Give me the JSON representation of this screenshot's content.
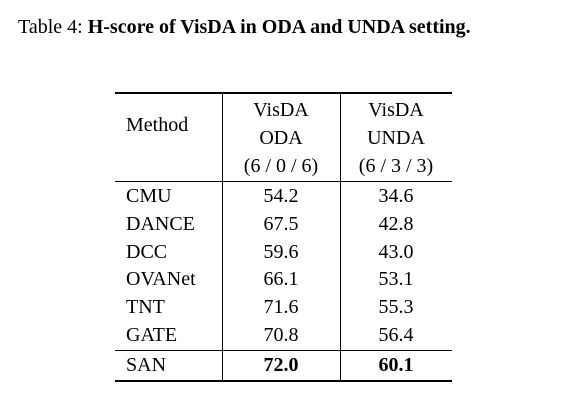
{
  "caption": {
    "label": "Table 4:",
    "text": "H-score of VisDA in ODA and UNDA setting."
  },
  "table": {
    "header": {
      "method": "Method",
      "columns": [
        [
          "VisDA",
          "ODA",
          "(6 / 0 / 6)"
        ],
        [
          "VisDA",
          "UNDA",
          "(6 / 3 / 3)"
        ]
      ]
    },
    "rows": [
      [
        "CMU",
        "54.2",
        "34.6"
      ],
      [
        "DANCE",
        "67.5",
        "42.8"
      ],
      [
        "DCC",
        "59.6",
        "43.0"
      ],
      [
        "OVANet",
        "66.1",
        "53.1"
      ],
      [
        "TNT",
        "71.6",
        "55.3"
      ],
      [
        "GATE",
        "70.8",
        "56.4"
      ]
    ],
    "highlight_row": [
      "SAN",
      "72.0",
      "60.1"
    ]
  }
}
